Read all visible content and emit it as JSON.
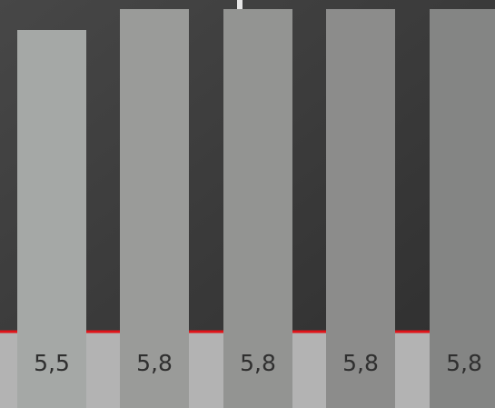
{
  "chart_data": {
    "type": "bar",
    "values": [
      5.5,
      5.8,
      5.8,
      5.8,
      5.8
    ],
    "data_labels": [
      "5,5",
      "5,8",
      "5,8",
      "5,8",
      "5,8"
    ],
    "bar_colors": [
      "#a5a8a6",
      "#9a9b99",
      "#939492",
      "#8c8c8b",
      "#848584"
    ],
    "label_color": "#2f2f2f",
    "baseline_color": "#e0141a",
    "strip_color": "#b3b3b3"
  },
  "background": {
    "top_color": "#474747",
    "bottom_color": "#2d2d2d"
  },
  "marker_color": "#e6e6e6"
}
